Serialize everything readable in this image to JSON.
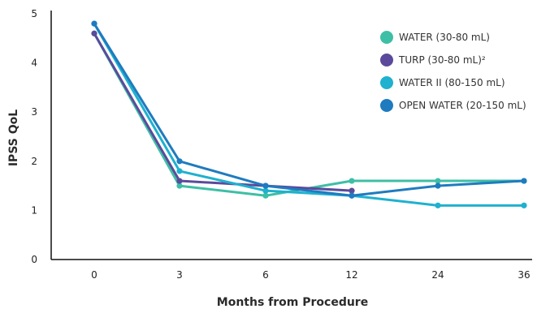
{
  "chart_data": {
    "type": "line",
    "title": "",
    "xlabel": "Months from Procedure",
    "ylabel": "IPSS QoL",
    "categories": [
      "0",
      "3",
      "6",
      "12",
      "24",
      "36"
    ],
    "y_ticks": [
      "0",
      "1",
      "2",
      "3",
      "4",
      "5"
    ],
    "ylim": [
      0,
      5
    ],
    "grid": false,
    "legend_position": "top-right",
    "series": [
      {
        "name": "WATER (30-80 mL)",
        "color": "#3dbfa6",
        "values": [
          4.6,
          1.5,
          1.3,
          1.6,
          1.6,
          1.6
        ]
      },
      {
        "name": "TURP (30-80 mL)²",
        "color": "#5b4a9b",
        "values": [
          4.6,
          1.6,
          1.5,
          1.4,
          null,
          null
        ]
      },
      {
        "name": "WATER II (80-150 mL)",
        "color": "#1fb1cf",
        "values": [
          4.8,
          1.8,
          1.4,
          1.3,
          1.1,
          1.1
        ]
      },
      {
        "name": "OPEN WATER (20-150 mL)",
        "color": "#1f7bbf",
        "values": [
          4.8,
          2.0,
          1.5,
          1.3,
          1.5,
          1.6
        ]
      }
    ]
  }
}
